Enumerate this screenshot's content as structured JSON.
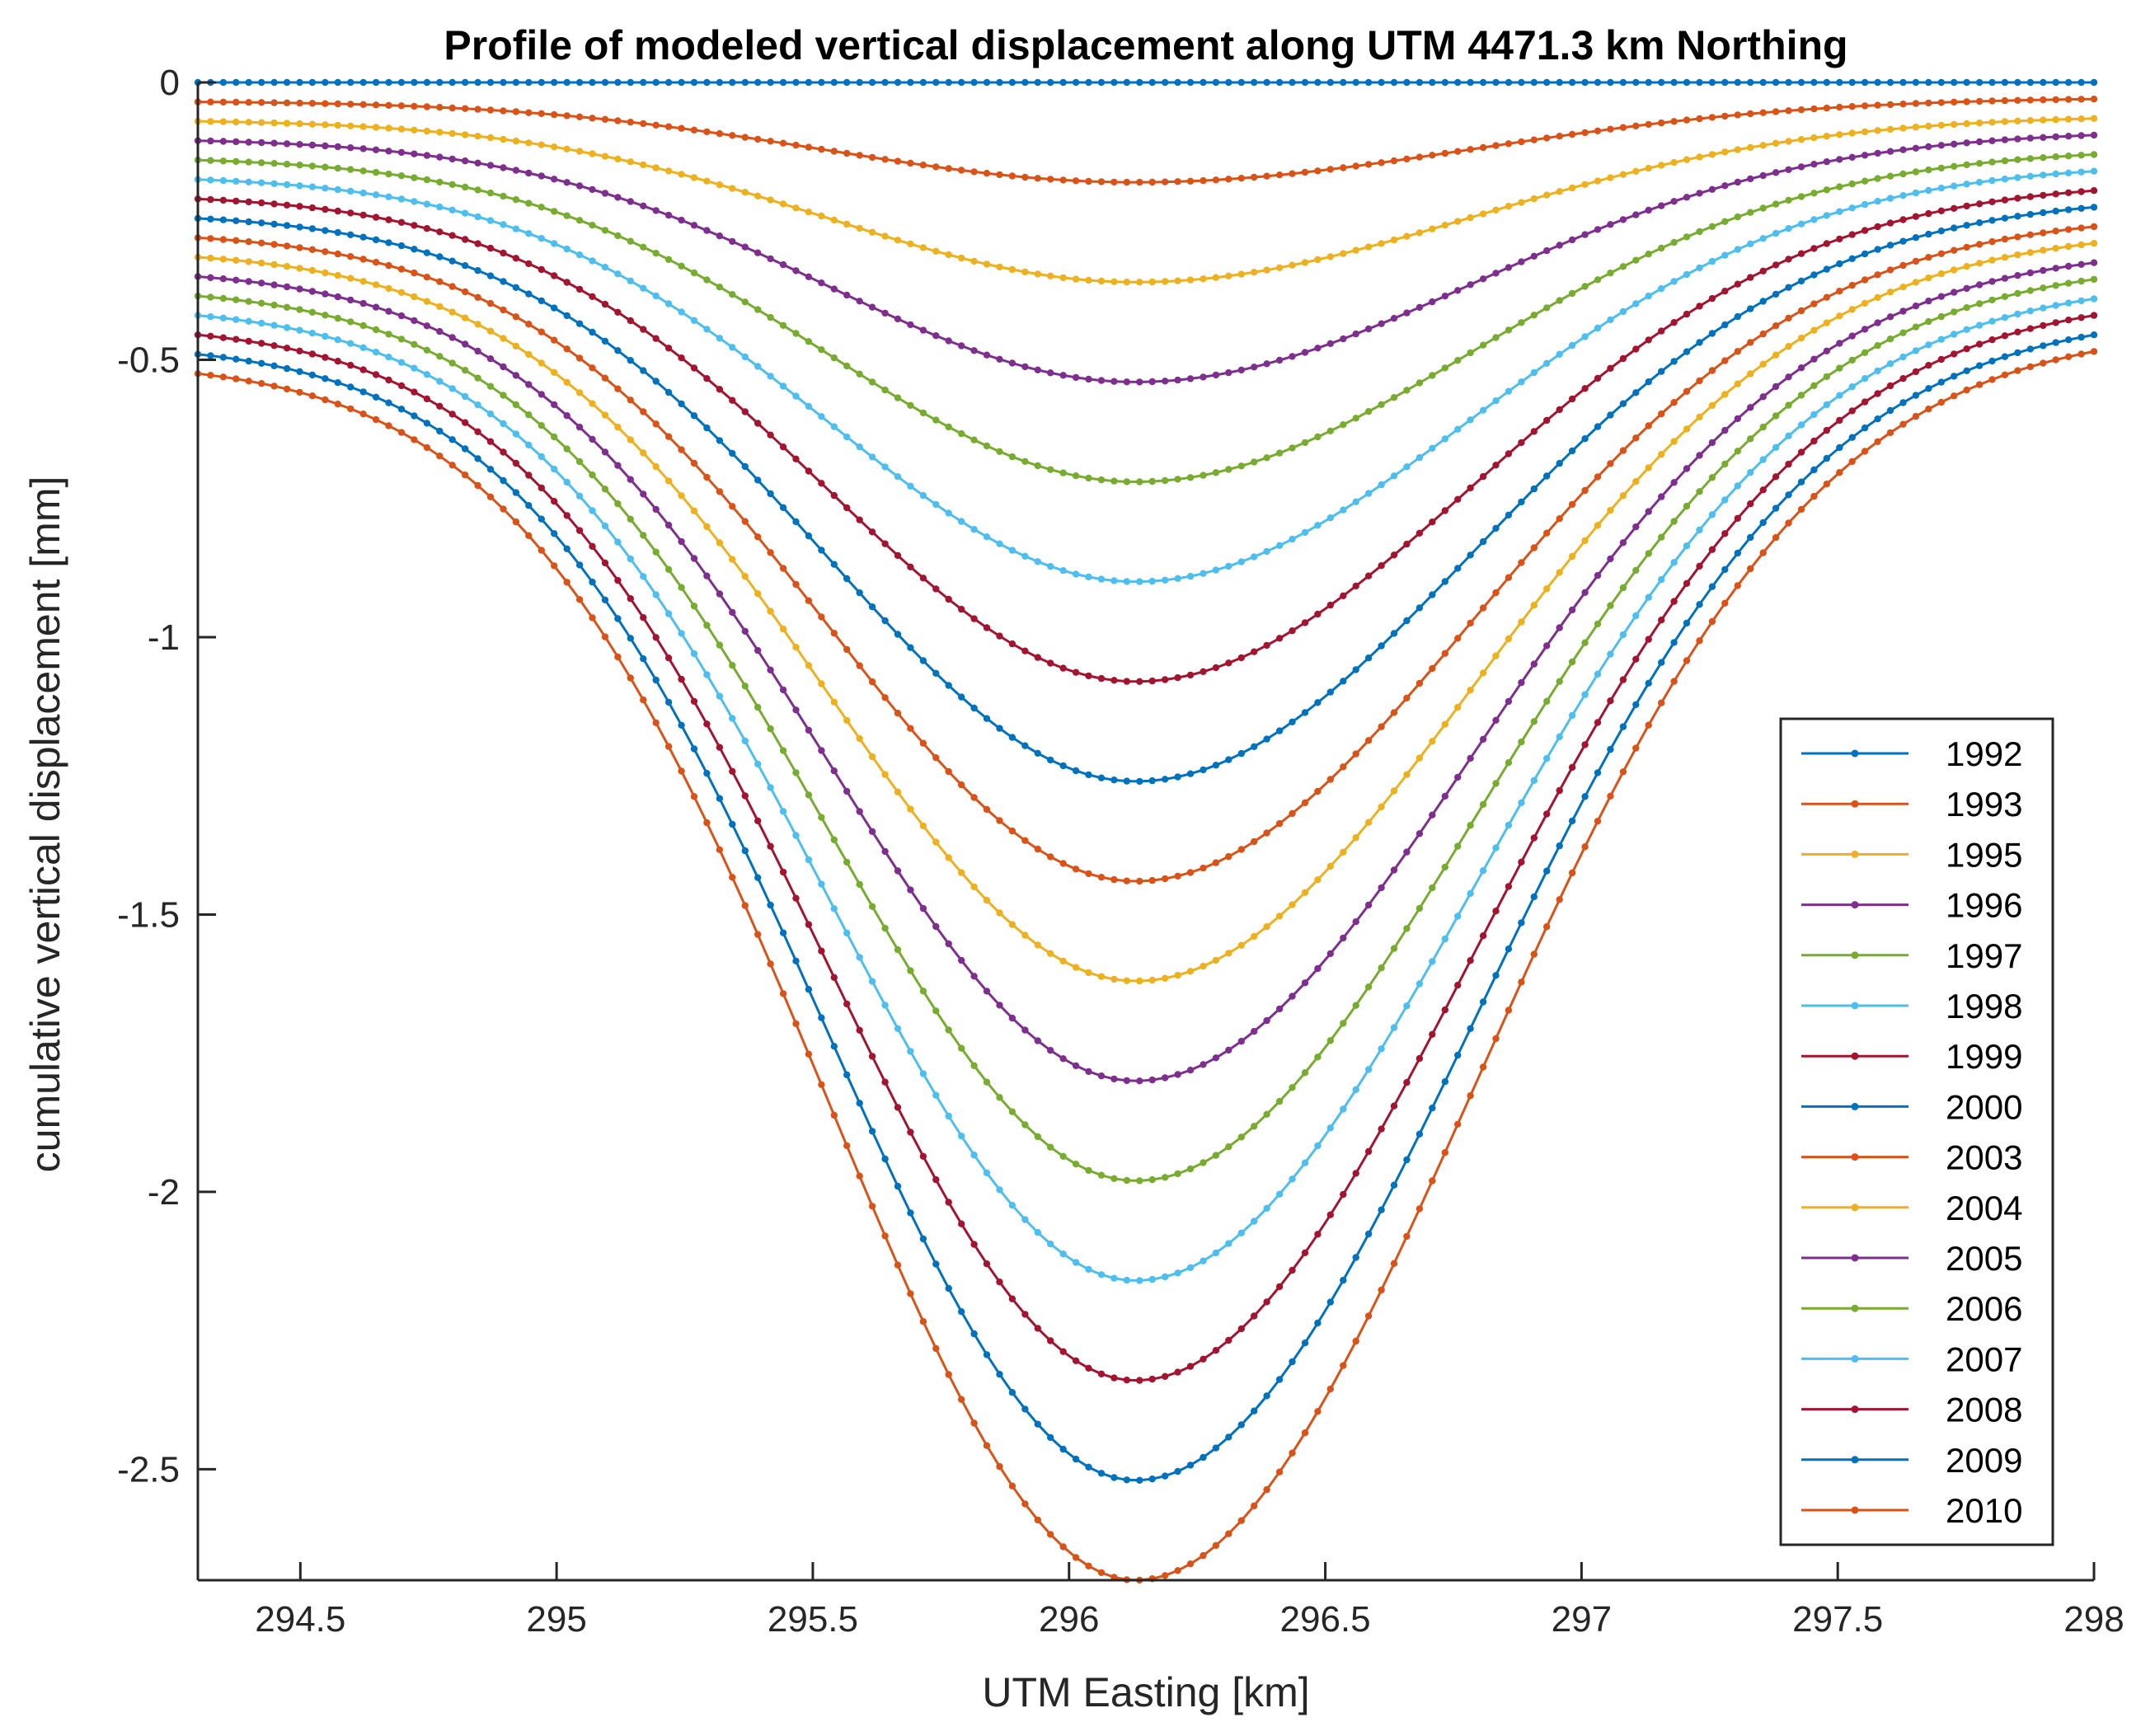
{
  "chart_data": {
    "type": "line",
    "title": "Profile of modeled vertical displacement along UTM 4471.3 km Northing",
    "xlabel": "UTM Easting [km]",
    "ylabel": "cumulative vertical displacement [mm]",
    "xlim": [
      294.3,
      298
    ],
    "ylim": [
      -2.7,
      0
    ],
    "xticks": [
      294.5,
      295,
      295.5,
      296,
      296.5,
      297,
      297.5,
      298
    ],
    "xtick_labels": [
      "294.5",
      "295",
      "295.5",
      "296",
      "296.5",
      "297",
      "297.5",
      "298"
    ],
    "yticks": [
      0,
      -0.5,
      -1,
      -1.5,
      -2,
      -2.5
    ],
    "ytick_labels": [
      "0",
      "-0.5",
      "-1",
      "-1.5",
      "-2",
      "-2.5"
    ],
    "legend_position": "bottom-right",
    "x_range": [
      294.3,
      298
    ],
    "n_points": 150,
    "profile_center_x": 296.13,
    "series": [
      {
        "name": "1992",
        "color": "#0072BD",
        "min": 0.0,
        "left_end": 0.0,
        "right_end": 0.0
      },
      {
        "name": "1993",
        "color": "#D95319",
        "min": -0.18,
        "left_end": -0.035,
        "right_end": -0.03
      },
      {
        "name": "1995",
        "color": "#EDB120",
        "min": -0.36,
        "left_end": -0.07,
        "right_end": -0.065
      },
      {
        "name": "1996",
        "color": "#7E2F8E",
        "min": -0.54,
        "left_end": -0.105,
        "right_end": -0.095
      },
      {
        "name": "1997",
        "color": "#77AC30",
        "min": -0.72,
        "left_end": -0.14,
        "right_end": -0.13
      },
      {
        "name": "1998",
        "color": "#4DBEEE",
        "min": -0.9,
        "left_end": -0.175,
        "right_end": -0.16
      },
      {
        "name": "1999",
        "color": "#A2142F",
        "min": -1.08,
        "left_end": -0.21,
        "right_end": -0.195
      },
      {
        "name": "2000",
        "color": "#0072BD",
        "min": -1.26,
        "left_end": -0.245,
        "right_end": -0.225
      },
      {
        "name": "2003",
        "color": "#D95319",
        "min": -1.44,
        "left_end": -0.28,
        "right_end": -0.26
      },
      {
        "name": "2004",
        "color": "#EDB120",
        "min": -1.62,
        "left_end": -0.315,
        "right_end": -0.29
      },
      {
        "name": "2005",
        "color": "#7E2F8E",
        "min": -1.8,
        "left_end": -0.35,
        "right_end": -0.325
      },
      {
        "name": "2006",
        "color": "#77AC30",
        "min": -1.98,
        "left_end": -0.385,
        "right_end": -0.355
      },
      {
        "name": "2007",
        "color": "#4DBEEE",
        "min": -2.16,
        "left_end": -0.42,
        "right_end": -0.39
      },
      {
        "name": "2008",
        "color": "#A2142F",
        "min": -2.34,
        "left_end": -0.455,
        "right_end": -0.42
      },
      {
        "name": "2009",
        "color": "#0072BD",
        "min": -2.52,
        "left_end": -0.49,
        "right_end": -0.455
      },
      {
        "name": "2010",
        "color": "#D95319",
        "min": -2.7,
        "left_end": -0.525,
        "right_end": -0.485
      }
    ]
  }
}
